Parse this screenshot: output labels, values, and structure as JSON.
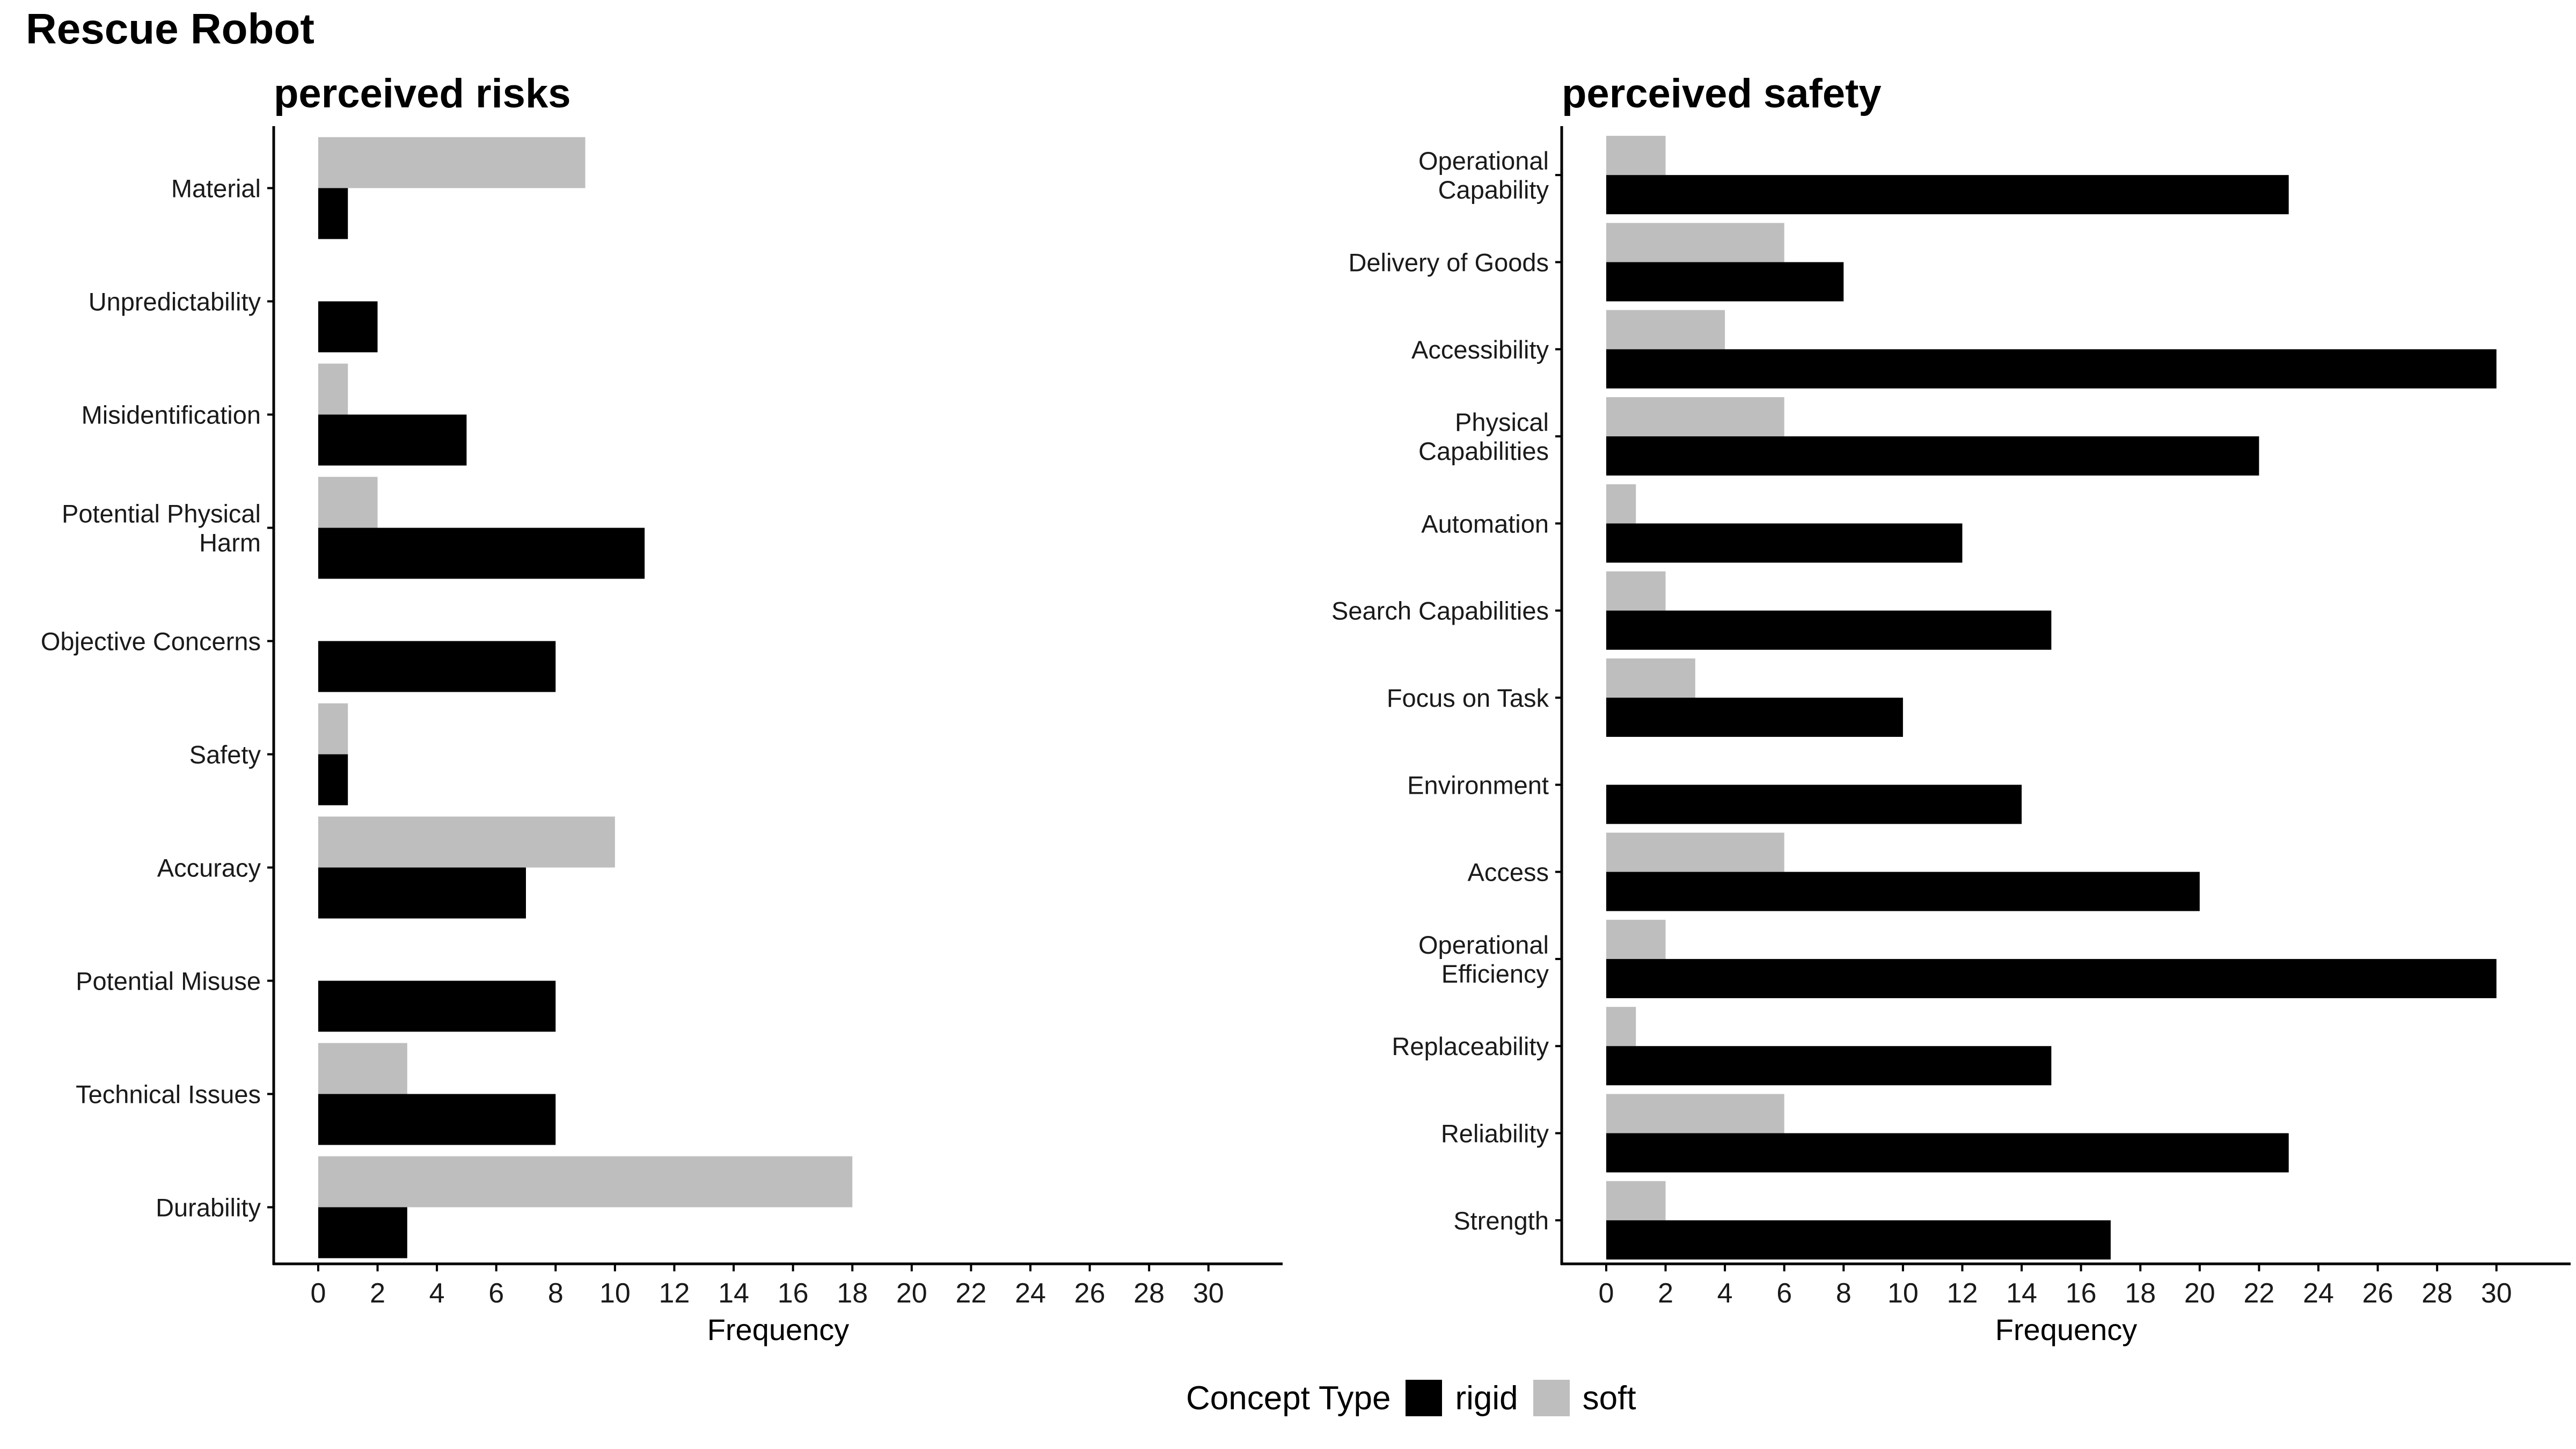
{
  "page_title": "Rescue Robot",
  "legend": {
    "title": "Concept Type",
    "items": [
      {
        "key": "rigid",
        "label": "rigid",
        "color": "#000000"
      },
      {
        "key": "soft",
        "label": "soft",
        "color": "#bebebe"
      }
    ]
  },
  "chart_data": [
    {
      "type": "bar",
      "orientation": "horizontal",
      "title": "perceived risks",
      "xlabel": "Frequency",
      "ylabel": "",
      "xlim": [
        -1.5,
        32.5
      ],
      "xticks": [
        0,
        2,
        4,
        6,
        8,
        10,
        12,
        14,
        16,
        18,
        20,
        22,
        24,
        26,
        28,
        30
      ],
      "grid": false,
      "legend_position": "bottom",
      "categories": [
        "Durability",
        "Technical Issues",
        "Potential Misuse",
        "Accuracy",
        "Safety",
        "Objective Concerns",
        "Potential Physical\nHarm",
        "Misidentification",
        "Unpredictability",
        "Material"
      ],
      "series": [
        {
          "name": "soft",
          "color": "#bebebe",
          "values": [
            18,
            3,
            0,
            10,
            1,
            0,
            2,
            1,
            0,
            9
          ]
        },
        {
          "name": "rigid",
          "color": "#000000",
          "values": [
            3,
            8,
            8,
            7,
            1,
            8,
            11,
            5,
            2,
            1
          ]
        }
      ]
    },
    {
      "type": "bar",
      "orientation": "horizontal",
      "title": "perceived safety",
      "xlabel": "Frequency",
      "ylabel": "",
      "xlim": [
        -1.5,
        32.5
      ],
      "xticks": [
        0,
        2,
        4,
        6,
        8,
        10,
        12,
        14,
        16,
        18,
        20,
        22,
        24,
        26,
        28,
        30
      ],
      "grid": false,
      "legend_position": "bottom",
      "categories": [
        "Strength",
        "Reliability",
        "Replaceability",
        "Operational\nEfficiency",
        "Access",
        "Environment",
        "Focus on Task",
        "Search Capabilities",
        "Automation",
        "Physical\nCapabilities",
        "Accessibility",
        "Delivery of Goods",
        "Operational\nCapability"
      ],
      "series": [
        {
          "name": "soft",
          "color": "#bebebe",
          "values": [
            2,
            6,
            1,
            2,
            6,
            0,
            3,
            2,
            1,
            6,
            4,
            6,
            2
          ]
        },
        {
          "name": "rigid",
          "color": "#000000",
          "values": [
            17,
            23,
            15,
            30,
            20,
            14,
            10,
            15,
            12,
            22,
            30,
            8,
            23
          ]
        }
      ]
    }
  ]
}
